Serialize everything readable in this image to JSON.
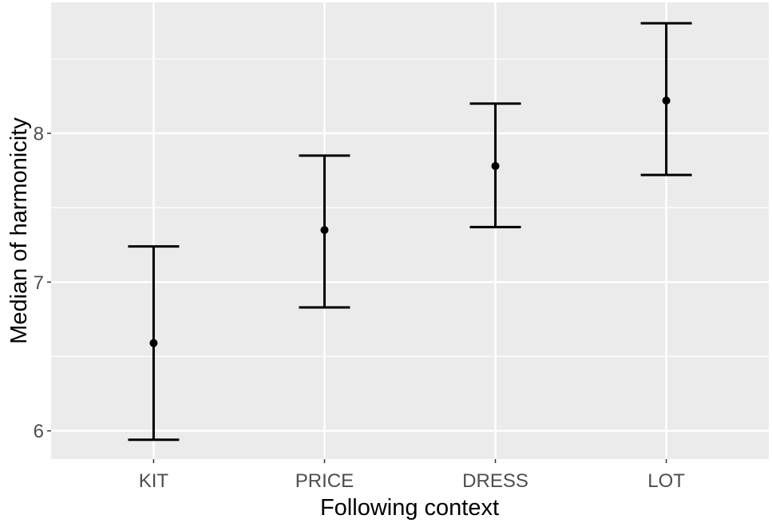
{
  "chart_data": {
    "type": "errorbar",
    "title": "",
    "xlabel": "Following context",
    "ylabel": "Median of harmonicity",
    "categories": [
      "KIT",
      "PRICE",
      "DRESS",
      "LOT"
    ],
    "values": [
      6.59,
      7.35,
      7.78,
      8.22
    ],
    "lower": [
      5.94,
      6.83,
      7.37,
      7.72
    ],
    "upper": [
      7.24,
      7.85,
      8.2,
      8.74
    ],
    "y_ticks": [
      6,
      7,
      8
    ],
    "y_tick_labels": [
      "6",
      "7",
      "8"
    ],
    "ylim": [
      5.81,
      8.88
    ],
    "grid": true,
    "legend": null,
    "colors": {
      "panel_bg": "#ebebeb",
      "grid": "#ffffff",
      "series": "#000000",
      "tick_text": "#4d4d4d",
      "axis_title": "#000000"
    }
  }
}
